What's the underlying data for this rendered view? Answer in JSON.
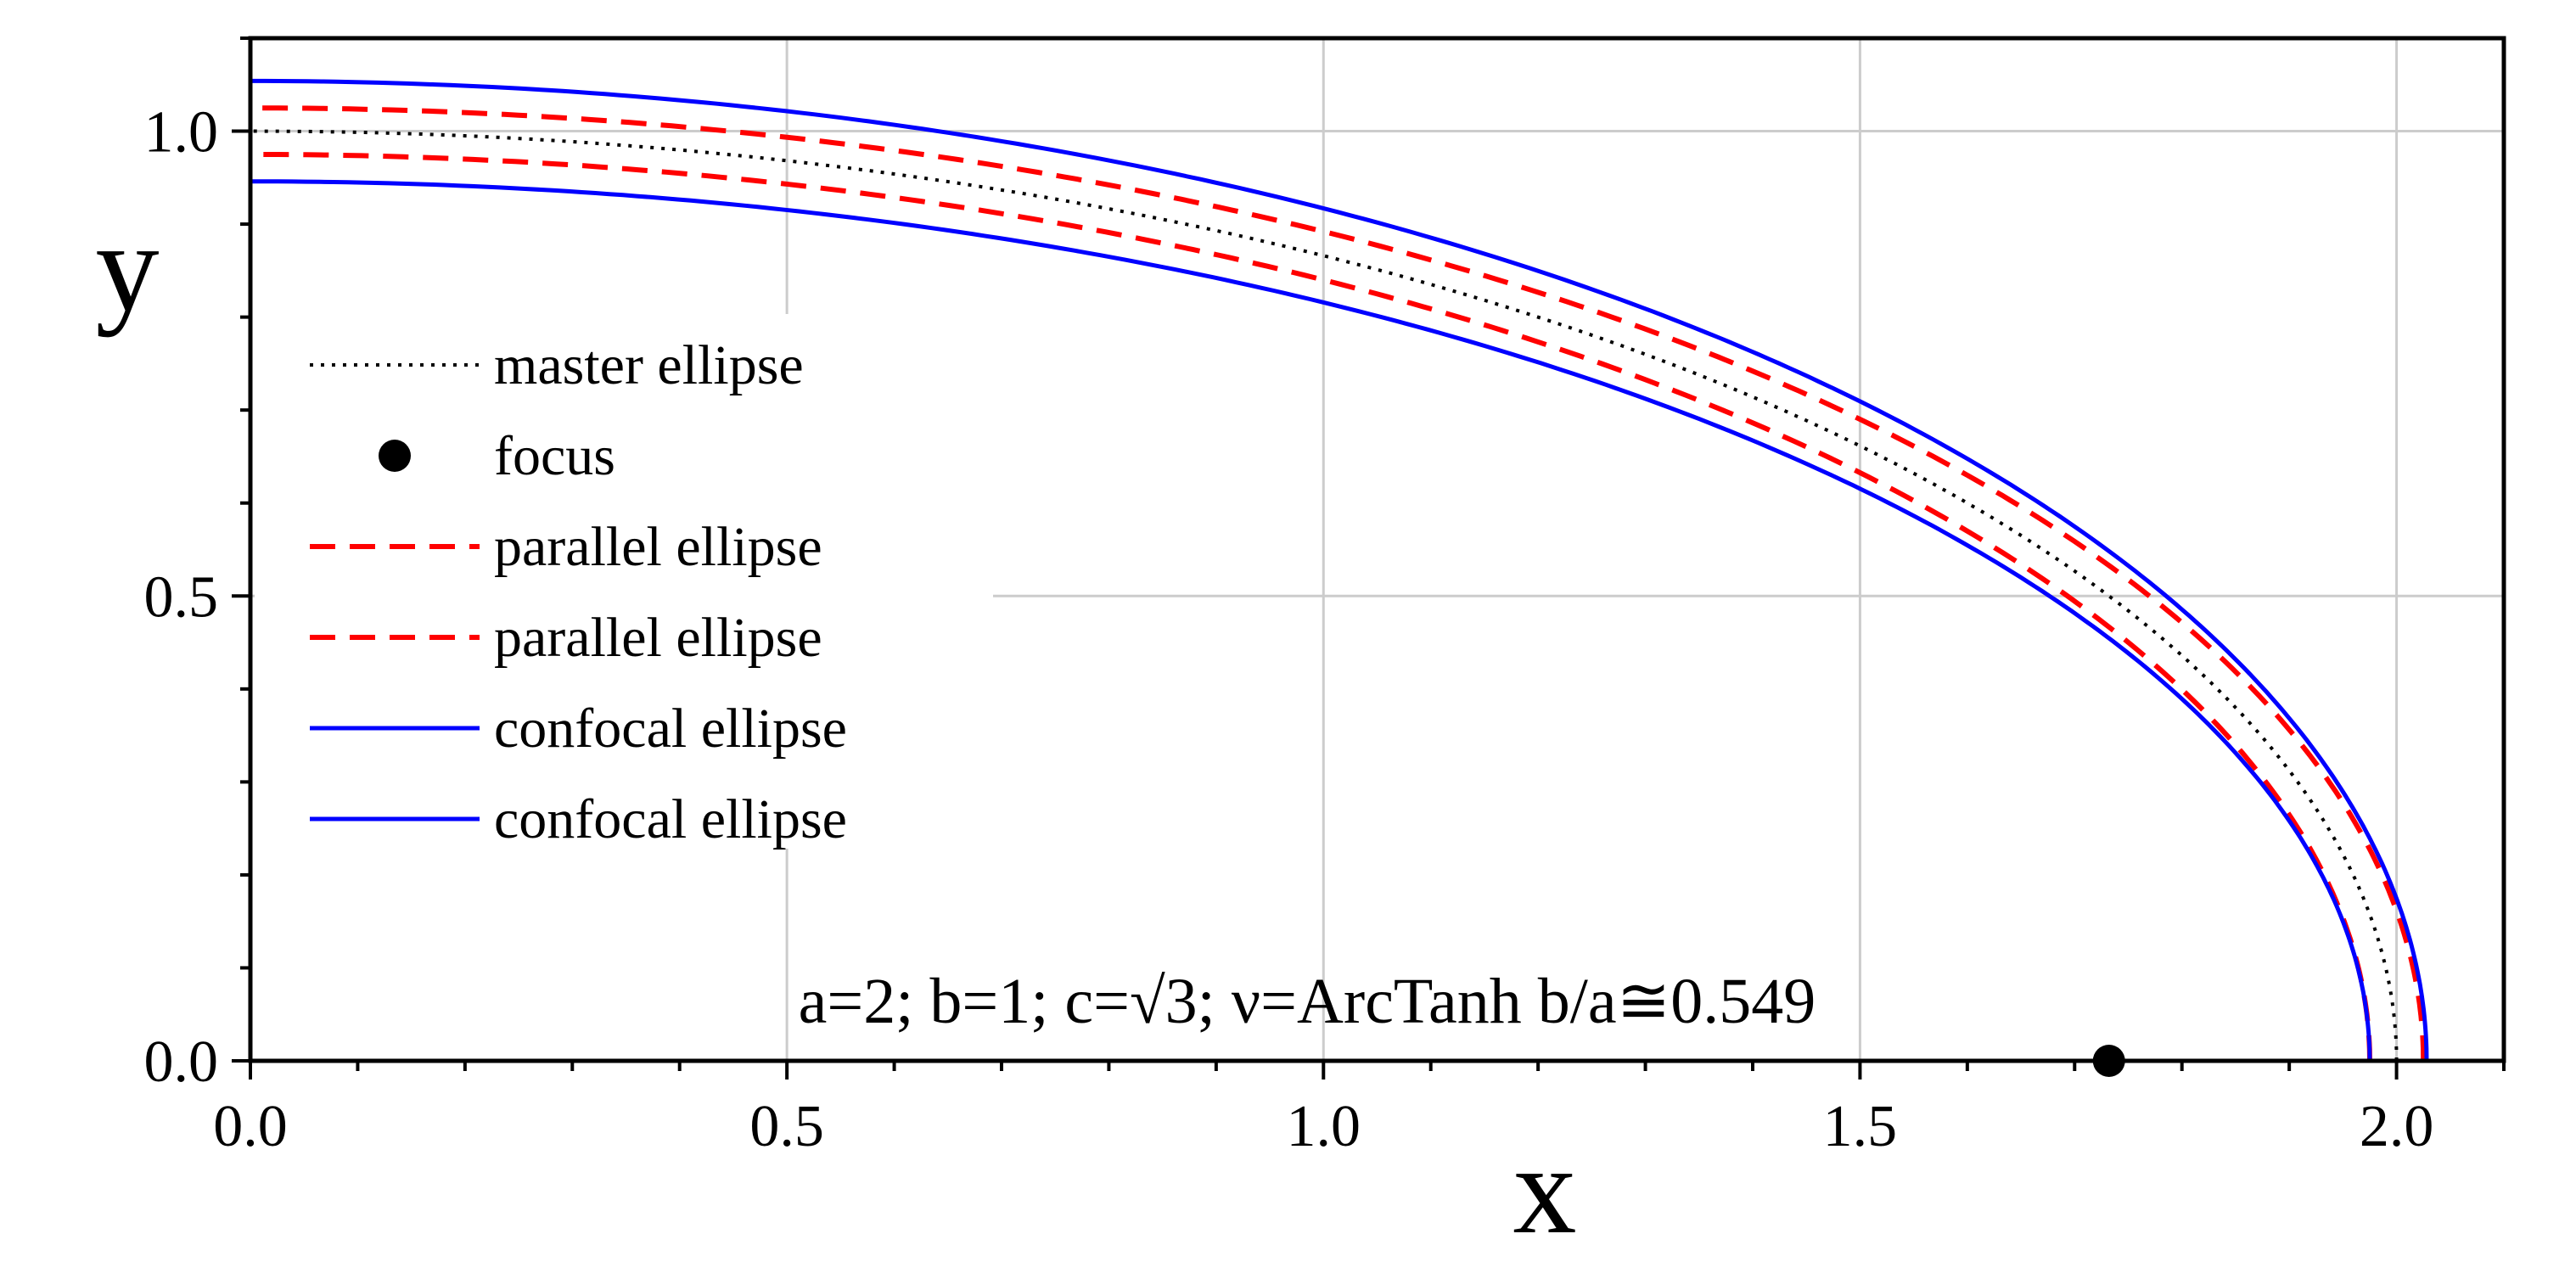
{
  "chart_data": {
    "type": "line",
    "title": "",
    "xlabel": "x",
    "ylabel": "y",
    "xlim": [
      0.0,
      2.1
    ],
    "ylim": [
      0.0,
      1.1
    ],
    "x_ticks": [
      "0.0",
      "0.5",
      "1.0",
      "1.5",
      "2.0"
    ],
    "y_ticks": [
      "0.0",
      "0.5",
      "1.0"
    ],
    "grid": true,
    "legend_position": "left",
    "annotation": "a=2;   b=1;   c=√3;  ν=ArcTanh b/a≅0.549",
    "params": {
      "a": 2,
      "b": 1,
      "c": 1.732,
      "nu": 0.549
    },
    "series": [
      {
        "name": "master ellipse",
        "kind": "ellipse",
        "semi_axes": [
          2.0,
          1.0
        ],
        "style": "dotted",
        "color": "#000000"
      },
      {
        "name": "focus",
        "kind": "point",
        "x": 1.732,
        "y": 0.0,
        "style": "marker",
        "color": "#000000"
      },
      {
        "name": "parallel ellipse",
        "kind": "parallel",
        "offset": 0.025,
        "style": "dashed",
        "color": "#ff0000"
      },
      {
        "name": "parallel ellipse",
        "kind": "parallel",
        "offset": -0.025,
        "style": "dashed",
        "color": "#ff0000"
      },
      {
        "name": "confocal ellipse",
        "kind": "ellipse",
        "semi_axes": [
          2.028,
          1.054
        ],
        "style": "solid",
        "color": "#0000ff"
      },
      {
        "name": "confocal ellipse",
        "kind": "ellipse",
        "semi_axes": [
          1.975,
          0.946
        ],
        "style": "solid",
        "color": "#0000ff"
      }
    ]
  }
}
